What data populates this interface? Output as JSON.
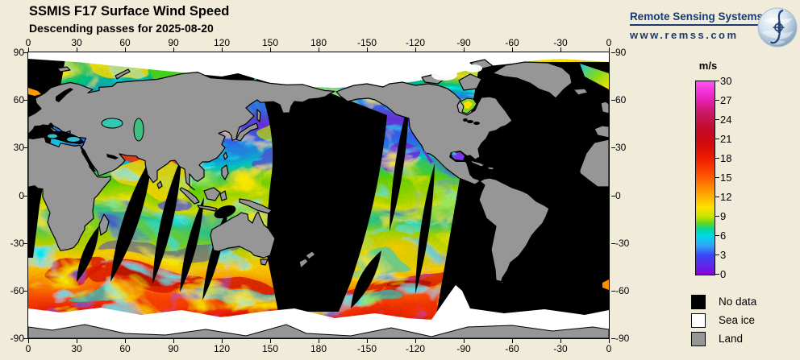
{
  "title": "SSMIS F17 Surface Wind Speed",
  "subtitle": "Descending passes for 2025-08-20",
  "brand": {
    "name": "Remote Sensing Systems",
    "url": "www.remss.com"
  },
  "map": {
    "projection": "equirectangular",
    "lon_ticks": [
      "0",
      "30",
      "60",
      "90",
      "120",
      "150",
      "180",
      "-150",
      "-120",
      "-90",
      "-60",
      "-30",
      "0"
    ],
    "lat_ticks": [
      "90",
      "60",
      "30",
      "0",
      "-30",
      "-60",
      "-90"
    ]
  },
  "colorbar": {
    "unit": "m/s",
    "min": 0,
    "max": 30,
    "tick_labels": [
      "30",
      "27",
      "24",
      "21",
      "18",
      "15",
      "12",
      "9",
      "6",
      "3",
      "0"
    ],
    "gradient_stops": [
      [
        "0",
        "#8a00de"
      ],
      [
        "1.5",
        "#5b2ae8"
      ],
      [
        "3",
        "#3b45f7"
      ],
      [
        "4.5",
        "#2fa5f5"
      ],
      [
        "6",
        "#00d8e8"
      ],
      [
        "7",
        "#00d9a0"
      ],
      [
        "8",
        "#62d81c"
      ],
      [
        "9",
        "#c8e400"
      ],
      [
        "10.5",
        "#ffe000"
      ],
      [
        "12",
        "#ffb400"
      ],
      [
        "13.5",
        "#ff8a00"
      ],
      [
        "15",
        "#ff5e00"
      ],
      [
        "16.5",
        "#fa3a00"
      ],
      [
        "18",
        "#ee1d01"
      ],
      [
        "19.5",
        "#dc0f06"
      ],
      [
        "21",
        "#cb0714"
      ],
      [
        "22.5",
        "#c30a28"
      ],
      [
        "24",
        "#c41448"
      ],
      [
        "25.5",
        "#d01870"
      ],
      [
        "27",
        "#e51fb0"
      ],
      [
        "28.5",
        "#f434da"
      ],
      [
        "30",
        "#ff55f0"
      ]
    ]
  },
  "legend": [
    {
      "label": "No data",
      "color": "#000000"
    },
    {
      "label": "Sea ice",
      "color": "#ffffff"
    },
    {
      "label": "Land",
      "color": "#969696"
    }
  ],
  "chart_data": {
    "type": "heatmap",
    "title": "SSMIS F17 Surface Wind Speed",
    "subtitle": "Descending passes for 2025-08-20",
    "units": "m/s",
    "scale_min": 0,
    "scale_max": 30,
    "lon_range": [
      0,
      360
    ],
    "lat_range": [
      -90,
      90
    ],
    "no_data_color": "#000000",
    "sea_ice_color": "#ffffff",
    "land_color": "#969696"
  }
}
